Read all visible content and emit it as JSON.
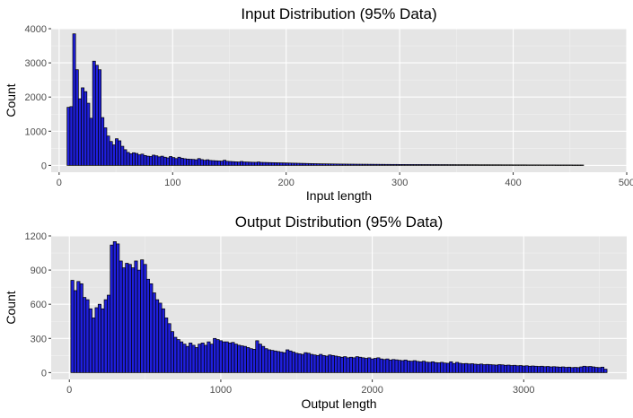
{
  "chart_data": [
    {
      "type": "bar",
      "title": "Input Distribution (95% Data)",
      "xlabel": "Input length",
      "ylabel": "Count",
      "xlim": [
        -7,
        500
      ],
      "ylim": [
        -200,
        4000
      ],
      "x_ticks": [
        0,
        100,
        200,
        300,
        400,
        500
      ],
      "x_tick_labels": [
        "0",
        "100",
        "200",
        "300",
        "400",
        "500"
      ],
      "y_ticks": [
        0,
        1000,
        2000,
        3000,
        4000
      ],
      "y_tick_labels": [
        "0",
        "1000",
        "2000",
        "3000",
        "4000"
      ],
      "grid": true,
      "bin_width": 2.5,
      "bin_start": 7,
      "values": [
        1700,
        1720,
        3850,
        2800,
        1950,
        2270,
        2160,
        1820,
        1380,
        3050,
        2930,
        2800,
        1400,
        1100,
        860,
        700,
        600,
        780,
        720,
        560,
        460,
        380,
        340,
        370,
        350,
        310,
        330,
        290,
        270,
        260,
        300,
        280,
        250,
        270,
        240,
        220,
        260,
        230,
        200,
        240,
        210,
        195,
        185,
        180,
        175,
        165,
        200,
        170,
        150,
        165,
        145,
        140,
        135,
        130,
        125,
        150,
        120,
        115,
        110,
        105,
        100,
        115,
        100,
        98,
        95,
        92,
        90,
        100,
        88,
        86,
        84,
        82,
        80,
        78,
        76,
        74,
        72,
        70,
        68,
        66,
        64,
        62,
        60,
        58,
        56,
        54,
        52,
        50,
        48,
        46,
        45,
        44,
        43,
        42,
        41,
        40,
        39,
        38,
        37,
        36,
        36,
        35,
        34,
        34,
        33,
        33,
        32,
        32,
        31,
        31,
        30,
        30,
        29,
        29,
        28,
        28,
        28,
        27,
        27,
        26,
        26,
        26,
        25,
        25,
        25,
        24,
        24,
        24,
        23,
        23,
        23,
        22,
        22,
        22,
        21,
        21,
        21,
        20,
        20,
        20,
        20,
        19,
        19,
        19,
        19,
        18,
        18,
        18,
        18,
        17,
        17,
        17,
        17,
        16,
        16,
        16,
        16,
        15,
        15,
        15,
        15,
        15,
        14,
        14,
        14,
        14,
        14,
        13,
        13,
        13,
        13,
        13,
        12,
        12,
        12,
        12,
        12,
        12,
        11,
        11,
        11,
        11
      ]
    },
    {
      "type": "bar",
      "title": "Output Distribution (95% Data)",
      "xlabel": "Output length",
      "ylabel": "Count",
      "xlim": [
        -120,
        3680
      ],
      "ylim": [
        -60,
        1200
      ],
      "x_ticks": [
        0,
        1000,
        2000,
        3000
      ],
      "x_tick_labels": [
        "0",
        "1000",
        "2000",
        "3000"
      ],
      "y_ticks": [
        0,
        300,
        600,
        900,
        1200
      ],
      "y_tick_labels": [
        "0",
        "300",
        "600",
        "900",
        "1200"
      ],
      "grid": true,
      "bin_width": 20,
      "bin_start": 10,
      "values": [
        810,
        720,
        800,
        780,
        660,
        640,
        560,
        480,
        570,
        600,
        560,
        640,
        680,
        1120,
        1150,
        1130,
        980,
        920,
        960,
        950,
        920,
        980,
        900,
        990,
        950,
        820,
        780,
        700,
        640,
        610,
        560,
        480,
        430,
        360,
        310,
        290,
        270,
        250,
        230,
        260,
        240,
        220,
        250,
        260,
        240,
        270,
        250,
        300,
        290,
        280,
        270,
        270,
        260,
        265,
        250,
        240,
        235,
        230,
        220,
        210,
        205,
        280,
        250,
        230,
        210,
        200,
        195,
        190,
        185,
        180,
        175,
        200,
        190,
        180,
        170,
        165,
        160,
        175,
        170,
        160,
        155,
        150,
        160,
        150,
        145,
        155,
        150,
        145,
        140,
        135,
        140,
        130,
        135,
        130,
        140,
        135,
        130,
        125,
        130,
        120,
        125,
        130,
        120,
        115,
        120,
        110,
        115,
        112,
        108,
        105,
        110,
        102,
        100,
        105,
        98,
        95,
        100,
        92,
        90,
        95,
        88,
        86,
        90,
        84,
        82,
        95,
        80,
        90,
        82,
        78,
        80,
        76,
        78,
        74,
        72,
        75,
        70,
        72,
        70,
        68,
        66,
        70,
        68,
        64,
        66,
        62,
        64,
        60,
        62,
        58,
        60,
        56,
        58,
        56,
        54,
        56,
        52,
        54,
        50,
        52,
        50,
        48,
        50,
        46,
        48,
        44,
        46,
        44,
        50,
        56,
        52,
        54,
        50,
        46,
        44,
        48,
        30
      ]
    }
  ]
}
